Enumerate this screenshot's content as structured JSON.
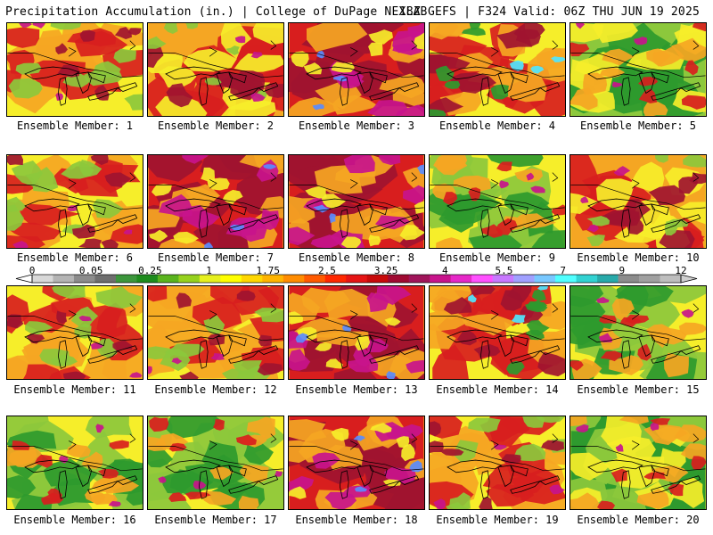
{
  "header": {
    "left": "Precipitation Accumulation (in.) | College of DuPage NEXLAB",
    "right": "18Z GEFS | F324 Valid: 06Z THU JUN 19 2025"
  },
  "legend": {
    "tick_labels": [
      "0",
      "0.05",
      "0.25",
      "1",
      "1.75",
      "2.5",
      "3.25",
      "4",
      "5.5",
      "7",
      "9",
      "12"
    ],
    "colors": [
      "#d8d8d8",
      "#b4b4b4",
      "#8c8c8c",
      "#6e6e6e",
      "#3c963c",
      "#1e8c1e",
      "#5ab41e",
      "#96d21e",
      "#e6f01e",
      "#ffff00",
      "#ffd700",
      "#ffb400",
      "#ff8c00",
      "#ff5a00",
      "#ff2800",
      "#e61414",
      "#c80a0a",
      "#a00a32",
      "#a0145a",
      "#c8148c",
      "#e628c8",
      "#ff50ff",
      "#c878ff",
      "#a0a0ff",
      "#78c8ff",
      "#50ffff",
      "#32d2d2",
      "#28aaaa",
      "#8c8c8c",
      "#a0a0a0",
      "#bebebe"
    ]
  },
  "colors": {
    "green": "#2e9a2e",
    "lightgreen": "#8cc83c",
    "yellow": "#f6ee2a",
    "orange": "#f5a623",
    "red": "#d81e1e",
    "darkred": "#a01430",
    "magenta": "#c8148c",
    "blue": "#5a8cff",
    "cyan": "#50e6ff"
  },
  "panels": [
    {
      "label": "Ensemble Member: 1",
      "mix": "yellow-red"
    },
    {
      "label": "Ensemble Member: 2",
      "mix": "red-orange"
    },
    {
      "label": "Ensemble Member: 3",
      "mix": "red-magenta"
    },
    {
      "label": "Ensemble Member: 4",
      "mix": "red-yellow"
    },
    {
      "label": "Ensemble Member: 5",
      "mix": "green-yellow"
    },
    {
      "label": "Ensemble Member: 6",
      "mix": "yellow-red"
    },
    {
      "label": "Ensemble Member: 7",
      "mix": "red-magenta"
    },
    {
      "label": "Ensemble Member: 8",
      "mix": "red-magenta"
    },
    {
      "label": "Ensemble Member: 9",
      "mix": "yellow-green"
    },
    {
      "label": "Ensemble Member: 10",
      "mix": "red-orange"
    },
    {
      "label": "Ensemble Member: 11",
      "mix": "yellow-red"
    },
    {
      "label": "Ensemble Member: 12",
      "mix": "yellow-red"
    },
    {
      "label": "Ensemble Member: 13",
      "mix": "red-magenta"
    },
    {
      "label": "Ensemble Member: 14",
      "mix": "red-yellow"
    },
    {
      "label": "Ensemble Member: 15",
      "mix": "yellow-green"
    },
    {
      "label": "Ensemble Member: 16",
      "mix": "yellow-green"
    },
    {
      "label": "Ensemble Member: 17",
      "mix": "yellow-green"
    },
    {
      "label": "Ensemble Member: 18",
      "mix": "red-magenta"
    },
    {
      "label": "Ensemble Member: 19",
      "mix": "yellow-red"
    },
    {
      "label": "Ensemble Member: 20",
      "mix": "green-red"
    }
  ]
}
